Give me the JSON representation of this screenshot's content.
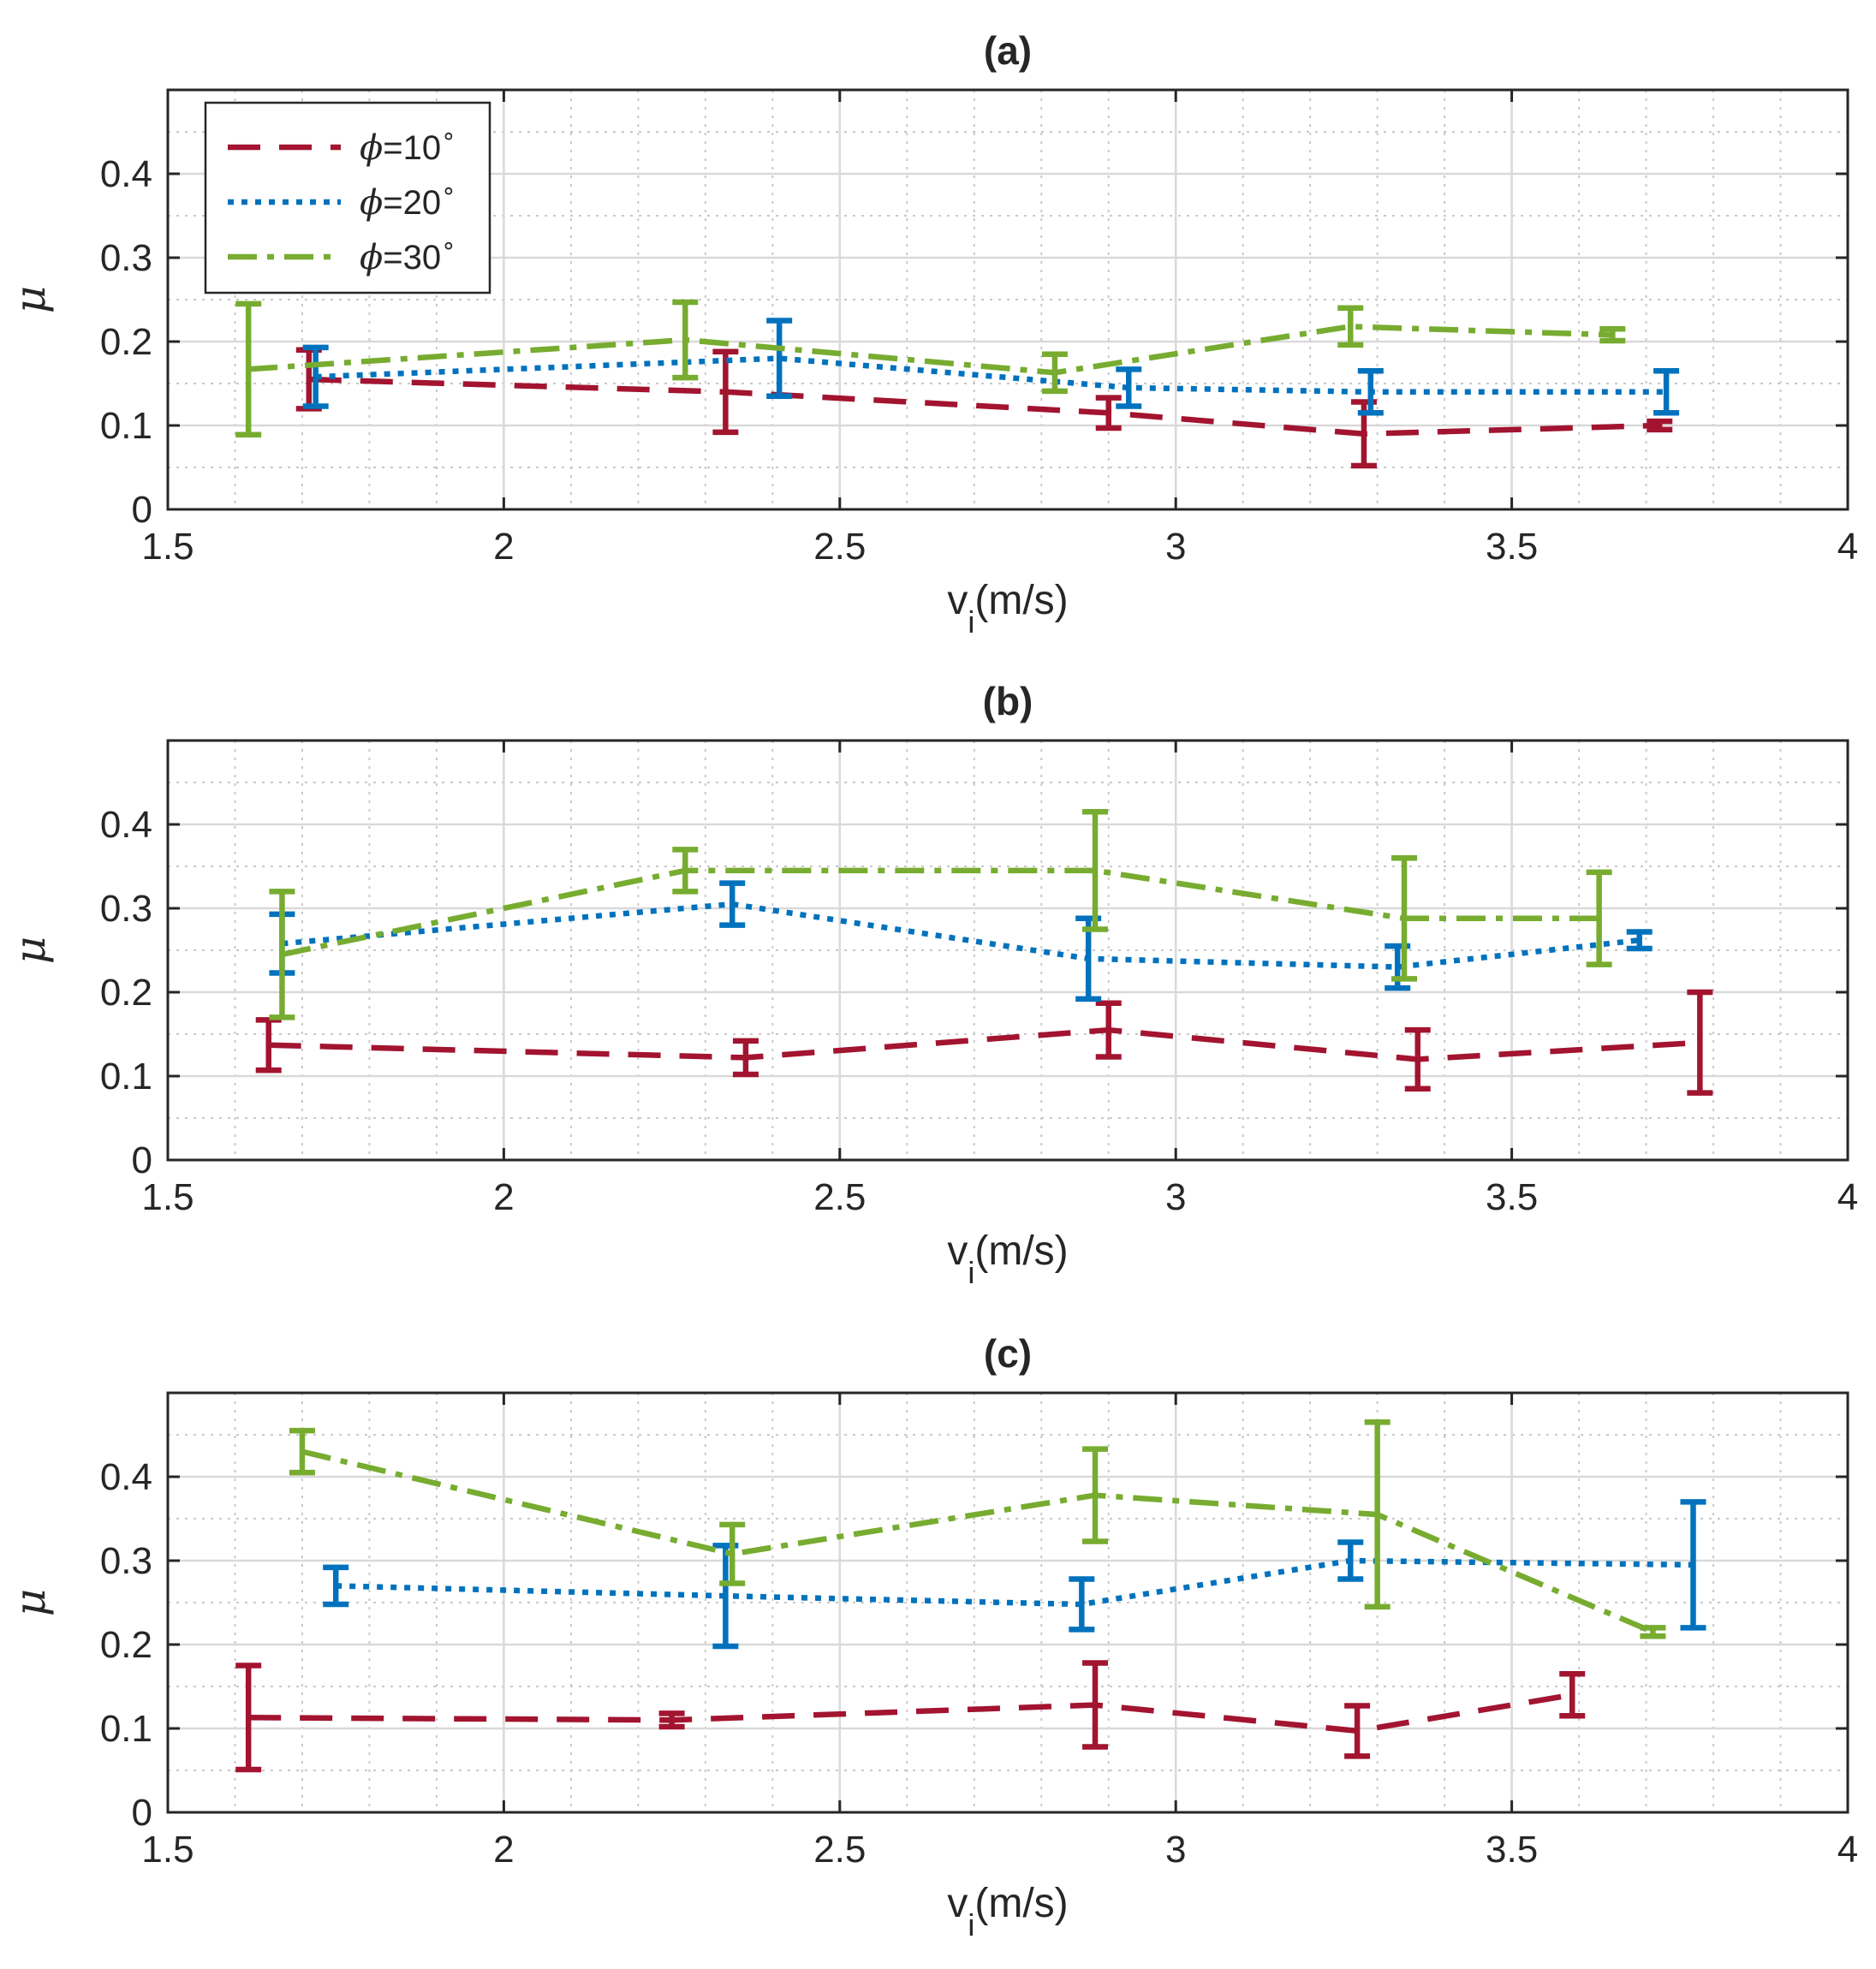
{
  "colors": {
    "phi10": "#a2142f",
    "phi20": "#0072bd",
    "phi30": "#77ac30",
    "grid": "#d9d9d9",
    "minor_grid": "#c8c8c8",
    "axis": "#262626"
  },
  "legend": {
    "entries": [
      {
        "prefix": "ϕ",
        "text": "=10",
        "deg": "∘"
      },
      {
        "prefix": "ϕ",
        "text": "=20",
        "deg": "∘"
      },
      {
        "prefix": "ϕ",
        "text": "=30",
        "deg": "∘"
      }
    ]
  },
  "chart_data": [
    {
      "type": "line",
      "title": "(a)",
      "xlabel": "v",
      "xlabel_sub": "i",
      "xlabel_unit": "(m/s)",
      "ylabel": "μ",
      "xlim": [
        1.5,
        4
      ],
      "ylim": [
        0,
        0.5
      ],
      "xticks": [
        "1.5",
        "2",
        "2.5",
        "3",
        "3.5",
        "4"
      ],
      "yticks": [
        "0",
        "0.1",
        "0.2",
        "0.3",
        "0.4"
      ],
      "legend_position": "top-left",
      "series": [
        {
          "name": "ϕ=10°",
          "x": [
            1.71,
            2.33,
            2.9,
            3.28,
            3.72
          ],
          "y": [
            0.155,
            0.14,
            0.115,
            0.09,
            0.1
          ],
          "err": [
            0.035,
            0.048,
            0.018,
            0.038,
            0.005
          ]
        },
        {
          "name": "ϕ=20°",
          "x": [
            1.72,
            2.41,
            2.93,
            3.29,
            3.73
          ],
          "y": [
            0.158,
            0.18,
            0.145,
            0.14,
            0.14
          ],
          "err": [
            0.035,
            0.045,
            0.022,
            0.025,
            0.025
          ]
        },
        {
          "name": "ϕ=30°",
          "x": [
            1.62,
            2.27,
            2.82,
            3.26,
            3.65
          ],
          "y": [
            0.167,
            0.202,
            0.163,
            0.218,
            0.208
          ],
          "err": [
            0.078,
            0.045,
            0.022,
            0.022,
            0.007
          ]
        }
      ]
    },
    {
      "type": "line",
      "title": "(b)",
      "xlabel": "v",
      "xlabel_sub": "i",
      "xlabel_unit": "(m/s)",
      "ylabel": "μ",
      "xlim": [
        1.5,
        4
      ],
      "ylim": [
        0,
        0.5
      ],
      "xticks": [
        "1.5",
        "2",
        "2.5",
        "3",
        "3.5",
        "4"
      ],
      "yticks": [
        "0",
        "0.1",
        "0.2",
        "0.3",
        "0.4"
      ],
      "series": [
        {
          "name": "ϕ=10°",
          "x": [
            1.65,
            2.36,
            2.9,
            3.36,
            3.78
          ],
          "y": [
            0.137,
            0.122,
            0.155,
            0.12,
            0.14
          ],
          "err": [
            0.03,
            0.02,
            0.032,
            0.035,
            0.06
          ]
        },
        {
          "name": "ϕ=20°",
          "x": [
            1.67,
            2.34,
            2.87,
            3.33,
            3.69
          ],
          "y": [
            0.258,
            0.305,
            0.24,
            0.23,
            0.262
          ],
          "err": [
            0.035,
            0.025,
            0.048,
            0.025,
            0.01
          ]
        },
        {
          "name": "ϕ=30°",
          "x": [
            1.67,
            2.27,
            2.88,
            3.34,
            3.63
          ],
          "y": [
            0.245,
            0.345,
            0.345,
            0.288,
            0.288
          ],
          "err": [
            0.075,
            0.025,
            0.07,
            0.072,
            0.055
          ]
        }
      ]
    },
    {
      "type": "line",
      "title": "(c)",
      "xlabel": "v",
      "xlabel_sub": "i",
      "xlabel_unit": "(m/s)",
      "ylabel": "μ",
      "xlim": [
        1.5,
        4
      ],
      "ylim": [
        0,
        0.5
      ],
      "xticks": [
        "1.5",
        "2",
        "2.5",
        "3",
        "3.5",
        "4"
      ],
      "yticks": [
        "0",
        "0.1",
        "0.2",
        "0.3",
        "0.4"
      ],
      "series": [
        {
          "name": "ϕ=10°",
          "x": [
            1.62,
            2.25,
            2.88,
            3.27,
            3.59
          ],
          "y": [
            0.113,
            0.11,
            0.128,
            0.097,
            0.14
          ],
          "err": [
            0.062,
            0.008,
            0.05,
            0.03,
            0.025
          ]
        },
        {
          "name": "ϕ=20°",
          "x": [
            1.75,
            2.33,
            2.86,
            3.26,
            3.77
          ],
          "y": [
            0.27,
            0.258,
            0.248,
            0.3,
            0.295
          ],
          "err": [
            0.022,
            0.06,
            0.03,
            0.022,
            0.075
          ]
        },
        {
          "name": "ϕ=30°",
          "x": [
            1.7,
            2.34,
            2.88,
            3.3,
            3.71
          ],
          "y": [
            0.43,
            0.308,
            0.378,
            0.355,
            0.215
          ],
          "err": [
            0.025,
            0.035,
            0.055,
            0.11,
            0.005
          ]
        }
      ]
    }
  ]
}
